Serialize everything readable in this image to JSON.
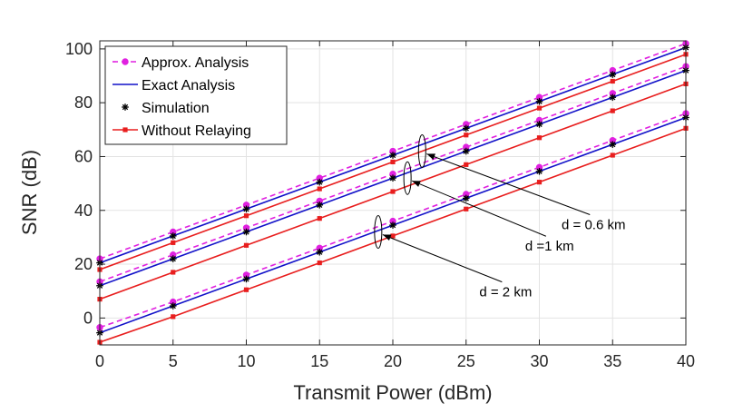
{
  "chart_data": {
    "type": "line",
    "title": "",
    "xlabel": "Transmit Power (dBm)",
    "ylabel": "SNR (dB)",
    "xlim": [
      0,
      40
    ],
    "ylim": [
      -10,
      103
    ],
    "xticks": [
      0,
      5,
      10,
      15,
      20,
      25,
      30,
      35,
      40
    ],
    "yticks": [
      0,
      20,
      40,
      60,
      80,
      100
    ],
    "grid": true,
    "legend_position": "top-left",
    "x": [
      0,
      5,
      10,
      15,
      20,
      25,
      30,
      35,
      40
    ],
    "legend": [
      {
        "label": "Approx. Analysis",
        "kind": "approx"
      },
      {
        "label": "Exact Analysis",
        "kind": "exact"
      },
      {
        "label": "Simulation",
        "kind": "sim"
      },
      {
        "label": "Without Relaying",
        "kind": "norelay"
      }
    ],
    "series": [
      {
        "name": "Approx. Analysis (d = 0.6 km)",
        "kind": "approx",
        "values": [
          22,
          32,
          42,
          52,
          62,
          72,
          82,
          92,
          102
        ]
      },
      {
        "name": "Exact Analysis (d = 0.6 km)",
        "kind": "exact",
        "values": [
          20.5,
          30.5,
          40.5,
          50.5,
          60.5,
          70.5,
          80.5,
          90.5,
          100.5
        ]
      },
      {
        "name": "Simulation (d = 0.6 km)",
        "kind": "sim",
        "values": [
          20.5,
          30.5,
          40.5,
          50.5,
          60.5,
          70.5,
          80.5,
          90.5,
          100.5
        ]
      },
      {
        "name": "Without Relaying (d = 0.6 km)",
        "kind": "norelay",
        "values": [
          18,
          28,
          38,
          48,
          58,
          68,
          78,
          88,
          98
        ]
      },
      {
        "name": "Approx. Analysis (d = 1 km)",
        "kind": "approx",
        "values": [
          13.5,
          23.5,
          33.5,
          43.5,
          53.5,
          63.5,
          73.5,
          83.5,
          93.5
        ]
      },
      {
        "name": "Exact Analysis (d = 1 km)",
        "kind": "exact",
        "values": [
          12,
          22,
          32,
          42,
          52,
          62,
          72,
          82,
          92
        ]
      },
      {
        "name": "Simulation (d = 1 km)",
        "kind": "sim",
        "values": [
          12,
          22,
          32,
          42,
          52,
          62,
          72,
          82,
          92
        ]
      },
      {
        "name": "Without Relaying (d = 1 km)",
        "kind": "norelay",
        "values": [
          7,
          17,
          27,
          37,
          47,
          57,
          67,
          77,
          87
        ]
      },
      {
        "name": "Approx. Analysis (d = 2 km)",
        "kind": "approx",
        "values": [
          -3.5,
          6,
          16,
          26,
          36,
          46,
          56,
          66,
          76
        ]
      },
      {
        "name": "Exact Analysis (d = 2 km)",
        "kind": "exact",
        "values": [
          -5.5,
          4.5,
          14.5,
          24.5,
          34.5,
          44.5,
          54.5,
          64.5,
          74.5
        ]
      },
      {
        "name": "Simulation (d = 2 km)",
        "kind": "sim",
        "values": [
          -5.5,
          4.5,
          14.5,
          24.5,
          34.5,
          44.5,
          54.5,
          64.5,
          74.5
        ]
      },
      {
        "name": "Without Relaying (d = 2 km)",
        "kind": "norelay",
        "values": [
          -9,
          0.5,
          10.5,
          20.5,
          30.5,
          40.5,
          50.5,
          60.5,
          70.5
        ]
      }
    ],
    "annotations": [
      {
        "text": "d = 0.6 km",
        "ellipse_center": [
          22,
          62
        ],
        "text_anchor": [
          33.7,
          33
        ]
      },
      {
        "text": "d =1 km",
        "ellipse_center": [
          21,
          52
        ],
        "text_anchor": [
          30.7,
          25
        ]
      },
      {
        "text": "d = 2 km",
        "ellipse_center": [
          19,
          32
        ],
        "text_anchor": [
          27.7,
          8
        ]
      }
    ],
    "styles": {
      "approx": {
        "color": "#e020e0",
        "dash": true,
        "marker": "circle"
      },
      "exact": {
        "color": "#1010c8",
        "dash": false,
        "marker": "none"
      },
      "sim": {
        "color": "#000000",
        "dash": false,
        "marker": "star"
      },
      "norelay": {
        "color": "#e81e1e",
        "dash": false,
        "marker": "square"
      }
    }
  }
}
